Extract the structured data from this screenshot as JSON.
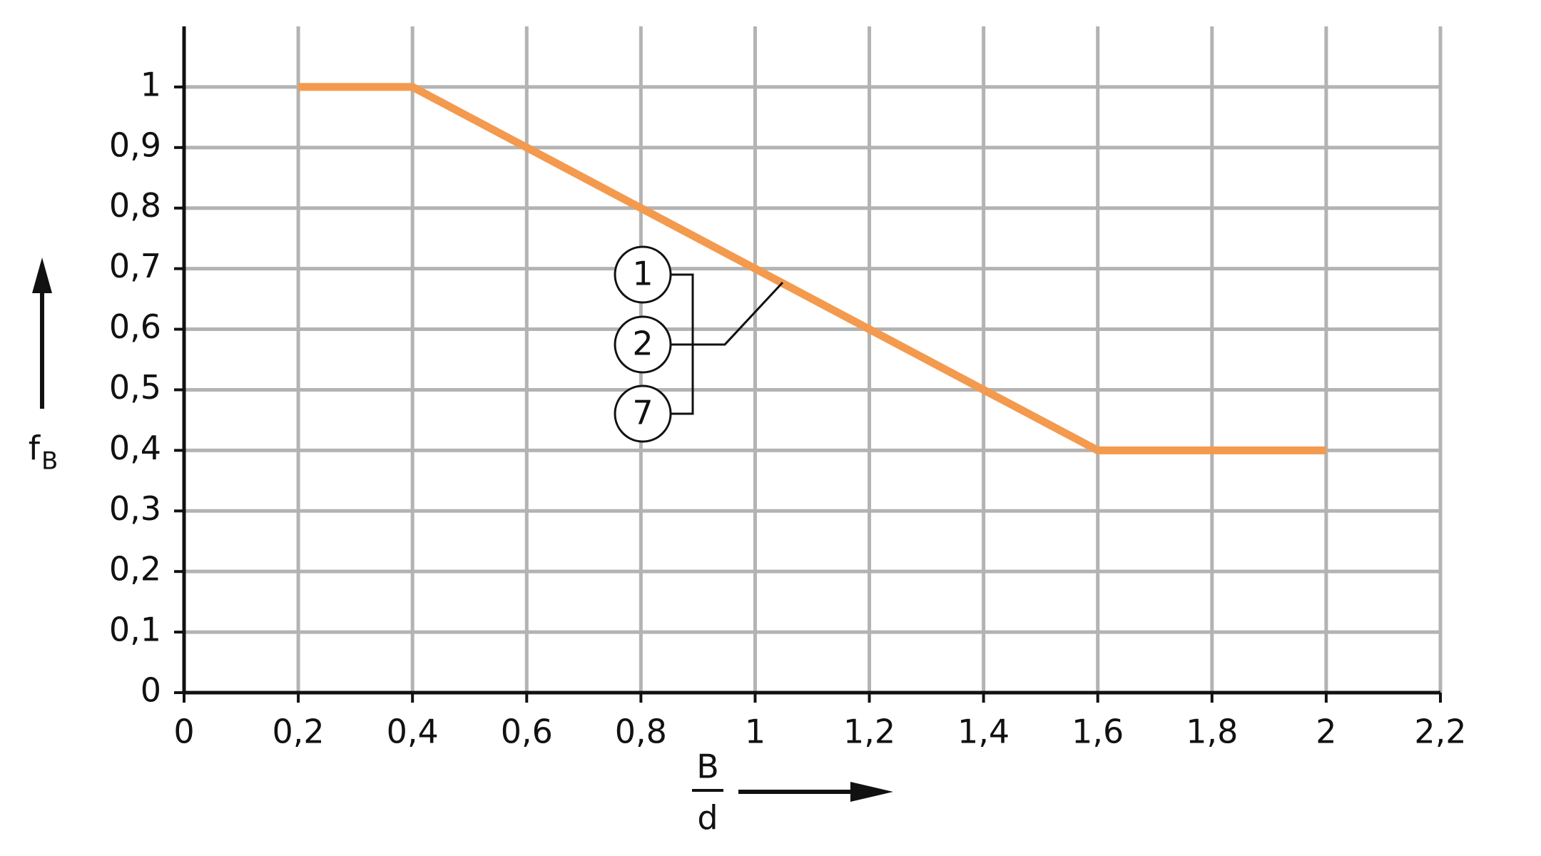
{
  "chart_data": {
    "type": "line",
    "x": [
      0.2,
      0.4,
      1.6,
      2
    ],
    "series": [
      {
        "color": "#f39a4e",
        "values": [
          1,
          1,
          0.4,
          0.4
        ]
      }
    ],
    "xlim": [
      0,
      2.2
    ],
    "ylim": [
      0,
      1.1
    ],
    "xticks": [
      0,
      {
        "value": 0.2,
        "label": "0,2"
      },
      {
        "value": 0.4,
        "label": "0,4"
      },
      {
        "value": 0.6,
        "label": "0,6"
      },
      {
        "value": 0.8,
        "label": "0,8"
      },
      1,
      {
        "value": 1.2,
        "label": "1,2"
      },
      {
        "value": 1.4,
        "label": "1,4"
      },
      {
        "value": 1.6,
        "label": "1,6"
      },
      {
        "value": 1.8,
        "label": "1,8"
      },
      2,
      {
        "value": 2.2,
        "label": "2,2"
      }
    ],
    "yticks": [
      0,
      {
        "value": 0.1,
        "label": "0,1"
      },
      {
        "value": 0.2,
        "label": "0,2"
      },
      {
        "value": 0.3,
        "label": "0,3"
      },
      {
        "value": 0.4,
        "label": "0,4"
      },
      {
        "value": 0.5,
        "label": "0,5"
      },
      {
        "value": 0.6,
        "label": "0,6"
      },
      {
        "value": 0.7,
        "label": "0,7"
      },
      {
        "value": 0.8,
        "label": "0,8"
      },
      {
        "value": 0.9,
        "label": "0,9"
      },
      1
    ],
    "grid": true,
    "y_label": {
      "main": "f",
      "sub": "B"
    },
    "x_label": {
      "numerator": "B",
      "denominator": "d"
    },
    "annotations": [
      "1",
      "2",
      "7"
    ]
  }
}
